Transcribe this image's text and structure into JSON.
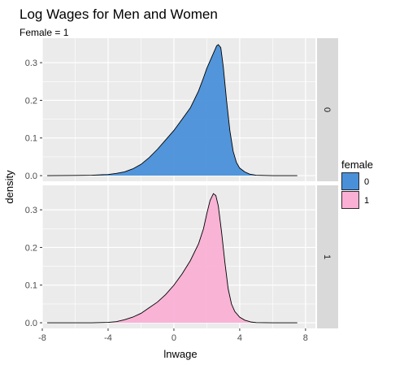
{
  "chart_data": {
    "type": "area",
    "title": "Log Wages for Men and Women",
    "subtitle": "Female = 1",
    "xlabel": "lnwage",
    "ylabel": "density",
    "xlim": [
      -8,
      8.6
    ],
    "ylim": [
      -0.015,
      0.365
    ],
    "xticks": [
      -8,
      -4,
      0,
      4,
      8
    ],
    "yticks": [
      0.0,
      0.1,
      0.2,
      0.3
    ],
    "ytick_labels": [
      "0.0",
      "0.1",
      "0.2",
      "0.3"
    ],
    "grid": true,
    "legend": {
      "title": "female",
      "position": "right",
      "entries": [
        {
          "label": "0",
          "color": "#4a90d9"
        },
        {
          "label": "1",
          "color": "#f9b0d4"
        }
      ]
    },
    "facets": [
      {
        "strip": "0",
        "color": "#4a90d9",
        "points": [
          [
            -7.7,
            0.0
          ],
          [
            -6,
            0.0005
          ],
          [
            -5,
            0.001
          ],
          [
            -4,
            0.003
          ],
          [
            -3.5,
            0.006
          ],
          [
            -3,
            0.01
          ],
          [
            -2.5,
            0.018
          ],
          [
            -2,
            0.03
          ],
          [
            -1.5,
            0.048
          ],
          [
            -1,
            0.07
          ],
          [
            -0.5,
            0.095
          ],
          [
            0,
            0.12
          ],
          [
            0.5,
            0.15
          ],
          [
            1,
            0.18
          ],
          [
            1.5,
            0.225
          ],
          [
            1.8,
            0.26
          ],
          [
            2.0,
            0.285
          ],
          [
            2.2,
            0.305
          ],
          [
            2.4,
            0.325
          ],
          [
            2.6,
            0.345
          ],
          [
            2.7,
            0.348
          ],
          [
            2.85,
            0.34
          ],
          [
            3.0,
            0.29
          ],
          [
            3.2,
            0.2
          ],
          [
            3.4,
            0.12
          ],
          [
            3.6,
            0.065
          ],
          [
            3.8,
            0.035
          ],
          [
            4.0,
            0.02
          ],
          [
            4.3,
            0.01
          ],
          [
            4.6,
            0.004
          ],
          [
            5,
            0.001
          ],
          [
            6,
            0.0
          ],
          [
            7.5,
            0.0
          ]
        ]
      },
      {
        "strip": "1",
        "color": "#f9b0d4",
        "points": [
          [
            -7.7,
            0.0
          ],
          [
            -5,
            0.0
          ],
          [
            -4,
            0.001
          ],
          [
            -3.5,
            0.003
          ],
          [
            -3,
            0.008
          ],
          [
            -2.5,
            0.015
          ],
          [
            -2,
            0.025
          ],
          [
            -1.5,
            0.04
          ],
          [
            -1,
            0.055
          ],
          [
            -0.5,
            0.075
          ],
          [
            0,
            0.1
          ],
          [
            0.5,
            0.13
          ],
          [
            1,
            0.165
          ],
          [
            1.5,
            0.21
          ],
          [
            1.8,
            0.25
          ],
          [
            2.0,
            0.29
          ],
          [
            2.2,
            0.325
          ],
          [
            2.4,
            0.343
          ],
          [
            2.55,
            0.338
          ],
          [
            2.7,
            0.31
          ],
          [
            2.9,
            0.24
          ],
          [
            3.1,
            0.16
          ],
          [
            3.3,
            0.09
          ],
          [
            3.5,
            0.05
          ],
          [
            3.7,
            0.03
          ],
          [
            4.0,
            0.015
          ],
          [
            4.3,
            0.007
          ],
          [
            4.7,
            0.002
          ],
          [
            5,
            0.0005
          ],
          [
            6,
            0.0
          ],
          [
            7.5,
            0.0
          ]
        ]
      }
    ]
  }
}
